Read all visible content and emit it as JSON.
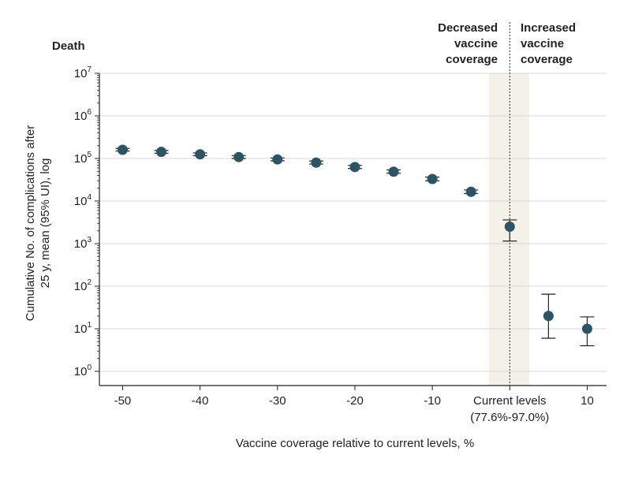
{
  "chart_data": {
    "type": "scatter",
    "panel_title": "Death",
    "xlabel": "Vaccine coverage relative to current levels, %",
    "ylabel_line1": "Cumulative No. of complications after",
    "ylabel_line2": "25 y, mean (95% UI), log",
    "y_scale": "log",
    "ylim": [
      1,
      10000000
    ],
    "xlim": [
      -53,
      12.5
    ],
    "grid": "horizontal",
    "y_ticks": [
      {
        "value": 1,
        "base": "10",
        "exp": "0"
      },
      {
        "value": 10,
        "base": "10",
        "exp": "1"
      },
      {
        "value": 100,
        "base": "10",
        "exp": "2"
      },
      {
        "value": 1000,
        "base": "10",
        "exp": "3"
      },
      {
        "value": 10000,
        "base": "10",
        "exp": "4"
      },
      {
        "value": 100000,
        "base": "10",
        "exp": "5"
      },
      {
        "value": 1000000,
        "base": "10",
        "exp": "6"
      },
      {
        "value": 10000000,
        "base": "10",
        "exp": "7"
      }
    ],
    "x_ticks": [
      {
        "value": -50,
        "label": "-50",
        "label2": ""
      },
      {
        "value": -40,
        "label": "-40",
        "label2": ""
      },
      {
        "value": -30,
        "label": "-30",
        "label2": ""
      },
      {
        "value": -20,
        "label": "-20",
        "label2": ""
      },
      {
        "value": -10,
        "label": "-10",
        "label2": ""
      },
      {
        "value": 0,
        "label": "Current levels",
        "label2": "(77.6%-97.0%)"
      },
      {
        "value": 10,
        "label": "10",
        "label2": ""
      }
    ],
    "points": [
      {
        "x": -50,
        "y": 160000,
        "lo": 150000,
        "hi": 172000
      },
      {
        "x": -45,
        "y": 143000,
        "lo": 133000,
        "hi": 154000
      },
      {
        "x": -40,
        "y": 125000,
        "lo": 116000,
        "hi": 135000
      },
      {
        "x": -35,
        "y": 108000,
        "lo": 100000,
        "hi": 117000
      },
      {
        "x": -30,
        "y": 95000,
        "lo": 88000,
        "hi": 103000
      },
      {
        "x": -25,
        "y": 80000,
        "lo": 74000,
        "hi": 87000
      },
      {
        "x": -20,
        "y": 63000,
        "lo": 58000,
        "hi": 69000
      },
      {
        "x": -15,
        "y": 49000,
        "lo": 45000,
        "hi": 54000
      },
      {
        "x": -10,
        "y": 33000,
        "lo": 30000,
        "hi": 36500
      },
      {
        "x": -5,
        "y": 16500,
        "lo": 15000,
        "hi": 18200
      },
      {
        "x": 0,
        "y": 2500,
        "lo": 1150,
        "hi": 3600
      },
      {
        "x": 5,
        "y": 20,
        "lo": 6,
        "hi": 65
      },
      {
        "x": 10,
        "y": 10,
        "lo": 4,
        "hi": 19
      }
    ],
    "shaded_band": {
      "x0": -2.7,
      "x1": 2.5
    },
    "reference_line_x": 0,
    "annotations": {
      "left": [
        "Decreased",
        "vaccine",
        "coverage"
      ],
      "right": [
        "Increased",
        "vaccine",
        "coverage"
      ]
    },
    "colors": {
      "point": "#2b5565",
      "errorbar": "#222222",
      "grid": "#d7d7d7",
      "band": "#f3f1e8",
      "axis": "#222222"
    }
  }
}
